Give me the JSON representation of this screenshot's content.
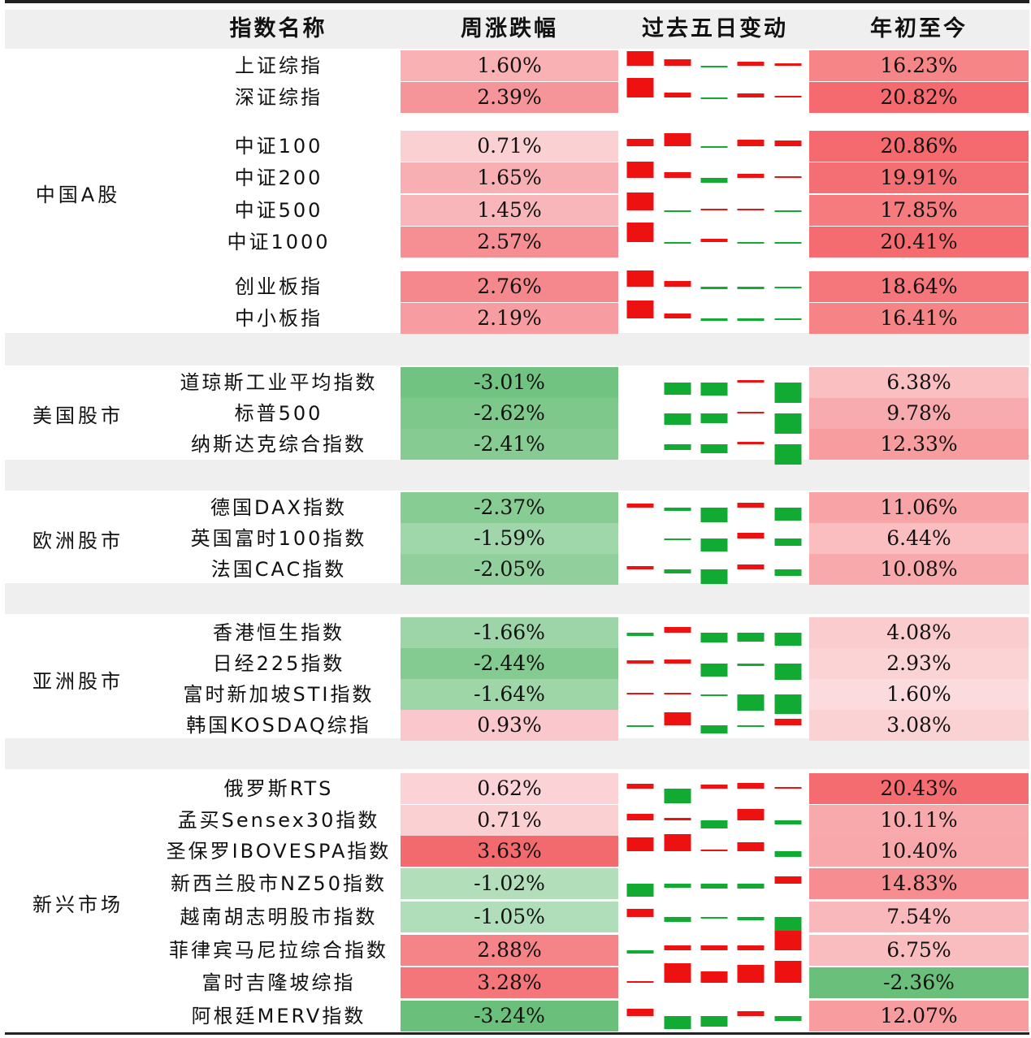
{
  "chart_data": {
    "type": "table",
    "columns": [
      "指数名称",
      "周涨跌幅",
      "过去五日变动",
      "年初至今"
    ],
    "colors": {
      "up": "#ee1111",
      "down": "#11aa33",
      "header_bg": "#efefef"
    },
    "groups": [
      {
        "name": "中国A股",
        "rows": [
          {
            "name": "上证综指",
            "weekly": 1.6,
            "weekly_label": "1.60%",
            "ytd": 16.23,
            "ytd_label": "16.23%",
            "days": [
              0.9,
              0.4,
              -0.1,
              0.25,
              0.15
            ]
          },
          {
            "name": "深证综指",
            "weekly": 2.39,
            "weekly_label": "2.39%",
            "ytd": 20.82,
            "ytd_label": "20.82%",
            "days": [
              1.2,
              0.3,
              -0.1,
              0.25,
              0.08
            ]
          },
          {
            "name": "中证100",
            "weekly": 0.71,
            "weekly_label": "0.71%",
            "ytd": 20.86,
            "ytd_label": "20.86%",
            "days": [
              0.45,
              0.8,
              -0.05,
              0.4,
              0.35
            ]
          },
          {
            "name": "中证200",
            "weekly": 1.65,
            "weekly_label": "1.65%",
            "ytd": 19.91,
            "ytd_label": "19.91%",
            "days": [
              1.0,
              0.35,
              -0.3,
              0.25,
              0.05
            ]
          },
          {
            "name": "中证500",
            "weekly": 1.45,
            "weekly_label": "1.45%",
            "ytd": 17.85,
            "ytd_label": "17.85%",
            "days": [
              1.1,
              -0.05,
              0.05,
              0.1,
              -0.1
            ]
          },
          {
            "name": "中证1000",
            "weekly": 2.57,
            "weekly_label": "2.57%",
            "ytd": 20.41,
            "ytd_label": "20.41%",
            "days": [
              1.2,
              -0.05,
              0.2,
              -0.1,
              -0.1
            ]
          },
          {
            "name": "创业板指",
            "weekly": 2.76,
            "weekly_label": "2.76%",
            "ytd": 18.64,
            "ytd_label": "18.64%",
            "days": [
              1.0,
              0.35,
              -0.15,
              -0.15,
              -0.08
            ]
          },
          {
            "name": "中小板指",
            "weekly": 2.19,
            "weekly_label": "2.19%",
            "ytd": 16.41,
            "ytd_label": "16.41%",
            "days": [
              1.1,
              0.3,
              -0.15,
              -0.15,
              -0.08
            ]
          }
        ]
      },
      {
        "name": "美国股市",
        "rows": [
          {
            "name": "道琼斯工业平均指数",
            "weekly": -3.01,
            "weekly_label": "-3.01%",
            "ytd": 6.38,
            "ytd_label": "6.38%",
            "days": [
              0.0,
              -0.75,
              -0.8,
              0.15,
              -1.25
            ]
          },
          {
            "name": "标普500",
            "weekly": -2.62,
            "weekly_label": "-2.62%",
            "ytd": 9.78,
            "ytd_label": "9.78%",
            "days": [
              0.0,
              -0.7,
              -0.6,
              0.1,
              -1.25
            ]
          },
          {
            "name": "纳斯达克综合指数",
            "weekly": -2.41,
            "weekly_label": "-2.41%",
            "ytd": 12.33,
            "ytd_label": "12.33%",
            "days": [
              0.0,
              -0.35,
              -0.55,
              0.15,
              -1.25
            ]
          }
        ]
      },
      {
        "name": "欧洲股市",
        "rows": [
          {
            "name": "德国DAX指数",
            "weekly": -2.37,
            "weekly_label": "-2.37%",
            "ytd": 11.06,
            "ytd_label": "11.06%",
            "days": [
              0.25,
              -0.2,
              -0.9,
              0.3,
              -0.8
            ]
          },
          {
            "name": "英国富时100指数",
            "weekly": -1.59,
            "weekly_label": "-1.59%",
            "ytd": 6.44,
            "ytd_label": "6.44%",
            "days": [
              0.0,
              -0.05,
              -0.8,
              0.35,
              -0.45
            ]
          },
          {
            "name": "法国CAC指数",
            "weekly": -2.05,
            "weekly_label": "-2.05%",
            "ytd": 10.08,
            "ytd_label": "10.08%",
            "days": [
              0.2,
              -0.25,
              -0.9,
              0.3,
              -0.4
            ]
          }
        ]
      },
      {
        "name": "亚洲股市",
        "rows": [
          {
            "name": "香港恒生指数",
            "weekly": -1.66,
            "weekly_label": "-1.66%",
            "ytd": 4.08,
            "ytd_label": "4.08%",
            "days": [
              -0.2,
              0.35,
              -0.6,
              -0.55,
              -0.8
            ]
          },
          {
            "name": "日经225指数",
            "weekly": -2.44,
            "weekly_label": "-2.44%",
            "ytd": 2.93,
            "ytd_label": "2.93%",
            "days": [
              0.2,
              0.25,
              -0.8,
              -0.15,
              -1.0
            ]
          },
          {
            "name": "富时新加坡STI指数",
            "weekly": -1.64,
            "weekly_label": "-1.64%",
            "ytd": 1.6,
            "ytd_label": "1.60%",
            "days": [
              0.05,
              0.05,
              -0.1,
              -1.0,
              -1.2
            ]
          },
          {
            "name": "韩国KOSDAQ综指",
            "weekly": 0.93,
            "weekly_label": "0.93%",
            "ytd": 3.08,
            "ytd_label": "3.08%",
            "days": [
              -0.1,
              0.8,
              -0.5,
              -0.1,
              0.4
            ]
          }
        ]
      },
      {
        "name": "新兴市场",
        "rows": [
          {
            "name": "俄罗斯RTS",
            "weekly": 0.62,
            "weekly_label": "0.62%",
            "ytd": 20.43,
            "ytd_label": "20.43%",
            "days": [
              0.3,
              -0.9,
              0.25,
              0.35,
              0.05
            ]
          },
          {
            "name": "孟买Sensex30指数",
            "weekly": 0.71,
            "weekly_label": "0.71%",
            "ytd": 10.11,
            "ytd_label": "10.11%",
            "days": [
              0.4,
              0.15,
              -0.5,
              0.7,
              -0.25
            ]
          },
          {
            "name": "圣保罗IBOVESPA指数",
            "weekly": 3.63,
            "weekly_label": "3.63%",
            "ytd": 10.4,
            "ytd_label": "10.40%",
            "days": [
              0.85,
              1.05,
              0.1,
              0.55,
              -0.35
            ]
          },
          {
            "name": "新西兰股市NZ50指数",
            "weekly": -1.02,
            "weekly_label": "-1.02%",
            "ytd": 14.83,
            "ytd_label": "14.83%",
            "days": [
              -0.8,
              -0.25,
              -0.3,
              -0.3,
              0.45
            ]
          },
          {
            "name": "越南胡志明股市指数",
            "weekly": -1.05,
            "weekly_label": "-1.05%",
            "ytd": 7.54,
            "ytd_label": "7.54%",
            "days": [
              0.5,
              -0.3,
              -0.1,
              -0.2,
              -0.9
            ]
          },
          {
            "name": "菲律宾马尼拉综合指数",
            "weekly": 2.88,
            "weekly_label": "2.88%",
            "ytd": 6.75,
            "ytd_label": "6.75%",
            "days": [
              -0.2,
              0.3,
              0.3,
              0.3,
              1.2
            ]
          },
          {
            "name": "富时吉隆坡综指",
            "weekly": 3.28,
            "weekly_label": "3.28%",
            "ytd": -2.36,
            "ytd_label": "-2.36%",
            "days": [
              0.1,
              1.2,
              0.7,
              1.1,
              1.35
            ]
          },
          {
            "name": "阿根廷MERV指数",
            "weekly": -3.24,
            "weekly_label": "-3.24%",
            "ytd": 12.07,
            "ytd_label": "12.07%",
            "days": [
              0.45,
              -0.8,
              -0.65,
              0.3,
              -0.3
            ]
          }
        ]
      }
    ]
  }
}
